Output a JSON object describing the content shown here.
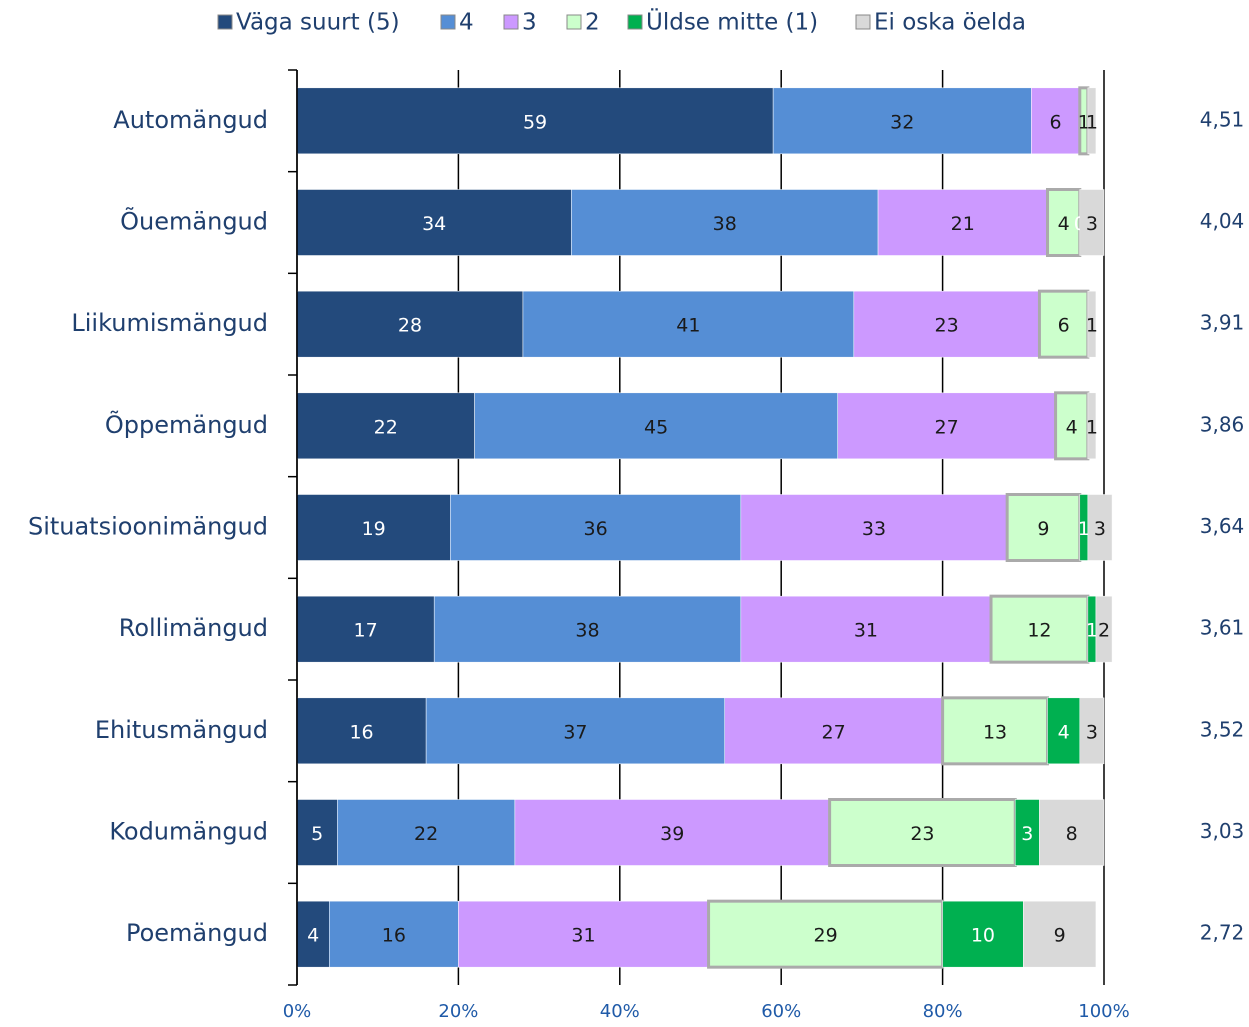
{
  "chart_data": {
    "type": "bar_stacked_horizontal",
    "categories": [
      "Automängud",
      "Õuemängud",
      "Liikumismängud",
      "Õppemängud",
      "Situatsioonimängud",
      "Rollimängud",
      "Ehitusmängud",
      "Kodumängud",
      "Poemängud"
    ],
    "series": [
      {
        "name": "Väga suurt (5)",
        "color": "#234a7c",
        "label_color": "#ffffff",
        "values": [
          59,
          34,
          28,
          22,
          19,
          17,
          16,
          5,
          4
        ]
      },
      {
        "name": "4",
        "color": "#558ed5",
        "label_color": "#1a1a1a",
        "values": [
          32,
          38,
          41,
          45,
          36,
          38,
          37,
          22,
          16
        ]
      },
      {
        "name": "3",
        "color": "#cc99ff",
        "label_color": "#1a1a1a",
        "values": [
          6,
          21,
          23,
          27,
          33,
          31,
          27,
          39,
          31
        ]
      },
      {
        "name": "2",
        "color": "#ccffcc",
        "label_color": "#1a1a1a",
        "values": [
          1,
          4,
          6,
          4,
          9,
          12,
          13,
          23,
          29
        ]
      },
      {
        "name": "Üldse mitte (1)",
        "color": "#00b050",
        "label_color": "#ffffff",
        "values": [
          null,
          0,
          null,
          null,
          1,
          1,
          4,
          3,
          10
        ]
      },
      {
        "name": "Ei oska öelda",
        "color": "#d9d9d9",
        "label_color": "#1a1a1a",
        "values": [
          1,
          3,
          1,
          1,
          3,
          2,
          3,
          8,
          9
        ]
      }
    ],
    "averages": [
      "4,51",
      "4,04",
      "3,91",
      "3,86",
      "3,64",
      "3,61",
      "3,52",
      "3,03",
      "2,72"
    ],
    "xlim": [
      0,
      100
    ],
    "xticks": [
      {
        "value": 0,
        "label": "0%"
      },
      {
        "value": 20,
        "label": "20%"
      },
      {
        "value": 40,
        "label": "40%"
      },
      {
        "value": 60,
        "label": "60%"
      },
      {
        "value": 80,
        "label": "80%"
      },
      {
        "value": 100,
        "label": "100%"
      }
    ],
    "grid": true,
    "legend": "top"
  }
}
